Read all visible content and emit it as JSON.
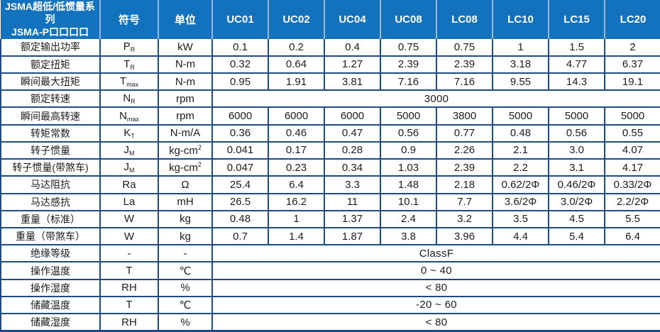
{
  "header": {
    "title_line1": "JSMA超低/低惯量系列",
    "title_line2": "JSMA-P口口口口",
    "symbol_col": "符号",
    "unit_col": "单位",
    "models": [
      "UC01",
      "UC02",
      "UC04",
      "UC08",
      "LC08",
      "LC10",
      "LC15",
      "LC20"
    ]
  },
  "colors": {
    "header_bg": "#1272BE",
    "header_text": "#FFFFFF",
    "header_separator": "#93B9DF",
    "body_border": "#1B4C86",
    "body_text": "#1C1C1C"
  },
  "rows": [
    {
      "label": "额定输出功率",
      "symbol": "P",
      "symbol_sub": "R",
      "unit": "kW",
      "values": [
        "0.1",
        "0.2",
        "0.4",
        "0.75",
        "0.75",
        "1",
        "1.5",
        "2"
      ]
    },
    {
      "label": "额定扭矩",
      "symbol": "T",
      "symbol_sub": "R",
      "unit": "N-m",
      "values": [
        "0.32",
        "0.64",
        "1.27",
        "2.39",
        "2.39",
        "3.18",
        "4.77",
        "6.37"
      ]
    },
    {
      "label": "瞬间最大扭矩",
      "symbol": "T",
      "symbol_sub": "max",
      "unit": "N-m",
      "values": [
        "0.95",
        "1.91",
        "3.81",
        "7.16",
        "7.16",
        "9.55",
        "14.3",
        "19.1"
      ]
    },
    {
      "label": "额定转速",
      "symbol": "N",
      "symbol_sub": "R",
      "unit": "rpm",
      "span_value": "3000"
    },
    {
      "label": "瞬间最高转速",
      "symbol": "N",
      "symbol_sub": "max",
      "unit": "rpm",
      "values": [
        "6000",
        "6000",
        "6000",
        "5000",
        "3800",
        "5000",
        "5000",
        "5000"
      ]
    },
    {
      "label": "转矩常数",
      "symbol": "K",
      "symbol_sub": "T",
      "unit": "N-m/A",
      "values": [
        "0.36",
        "0.46",
        "0.47",
        "0.56",
        "0.77",
        "0.48",
        "0.56",
        "0.55"
      ]
    },
    {
      "label": "转子惯量",
      "symbol": "J",
      "symbol_sub": "M",
      "unit": "kg-cm",
      "unit_sup": "2",
      "values": [
        "0.041",
        "0.17",
        "0.28",
        "0.9",
        "2.26",
        "2.1",
        "3.0",
        "4.07"
      ]
    },
    {
      "label": "转子惯量(带煞车)",
      "symbol": "J",
      "symbol_sub": "M",
      "unit": "kg-cm",
      "unit_sup": "2",
      "values": [
        "0.047",
        "0.23",
        "0.34",
        "1.03",
        "2.39",
        "2.2",
        "3.1",
        "4.17"
      ]
    },
    {
      "label": "马达阻抗",
      "symbol": "Ra",
      "unit": "Ω",
      "values": [
        "25.4",
        "6.4",
        "3.3",
        "1.48",
        "2.18",
        "0.62/2Φ",
        "0.46/2Φ",
        "0.33/2Φ"
      ]
    },
    {
      "label": "马达感抗",
      "symbol": "La",
      "unit": "mH",
      "values": [
        "26.5",
        "16.2",
        "11",
        "10.1",
        "7.7",
        "3.6/2Φ",
        "3.0/2Φ",
        "2.2/2Φ"
      ]
    },
    {
      "label": "重量（标准）",
      "symbol": "W",
      "unit": "kg",
      "values": [
        "0.48",
        "1",
        "1.37",
        "2.4",
        "3.2",
        "3.5",
        "4.5",
        "5.5"
      ]
    },
    {
      "label": "重量（带煞车）",
      "symbol": "W",
      "unit": "kg",
      "values": [
        "0.7",
        "1.4",
        "1.87",
        "3.8",
        "3.96",
        "4.4",
        "5.4",
        "6.4"
      ]
    },
    {
      "label": "绝缘等级",
      "symbol": "-",
      "unit": "-",
      "span_value": "ClassF"
    },
    {
      "label": "操作温度",
      "symbol": "T",
      "unit": "℃",
      "span_value": "0 ~ 40"
    },
    {
      "label": "操作湿度",
      "symbol": "RH",
      "unit": "%",
      "span_value": "< 80"
    },
    {
      "label": "储藏温度",
      "symbol": "T",
      "unit": "℃",
      "span_value": "-20 ~ 60"
    },
    {
      "label": "储藏湿度",
      "symbol": "RH",
      "unit": "%",
      "span_value": "< 80"
    }
  ]
}
